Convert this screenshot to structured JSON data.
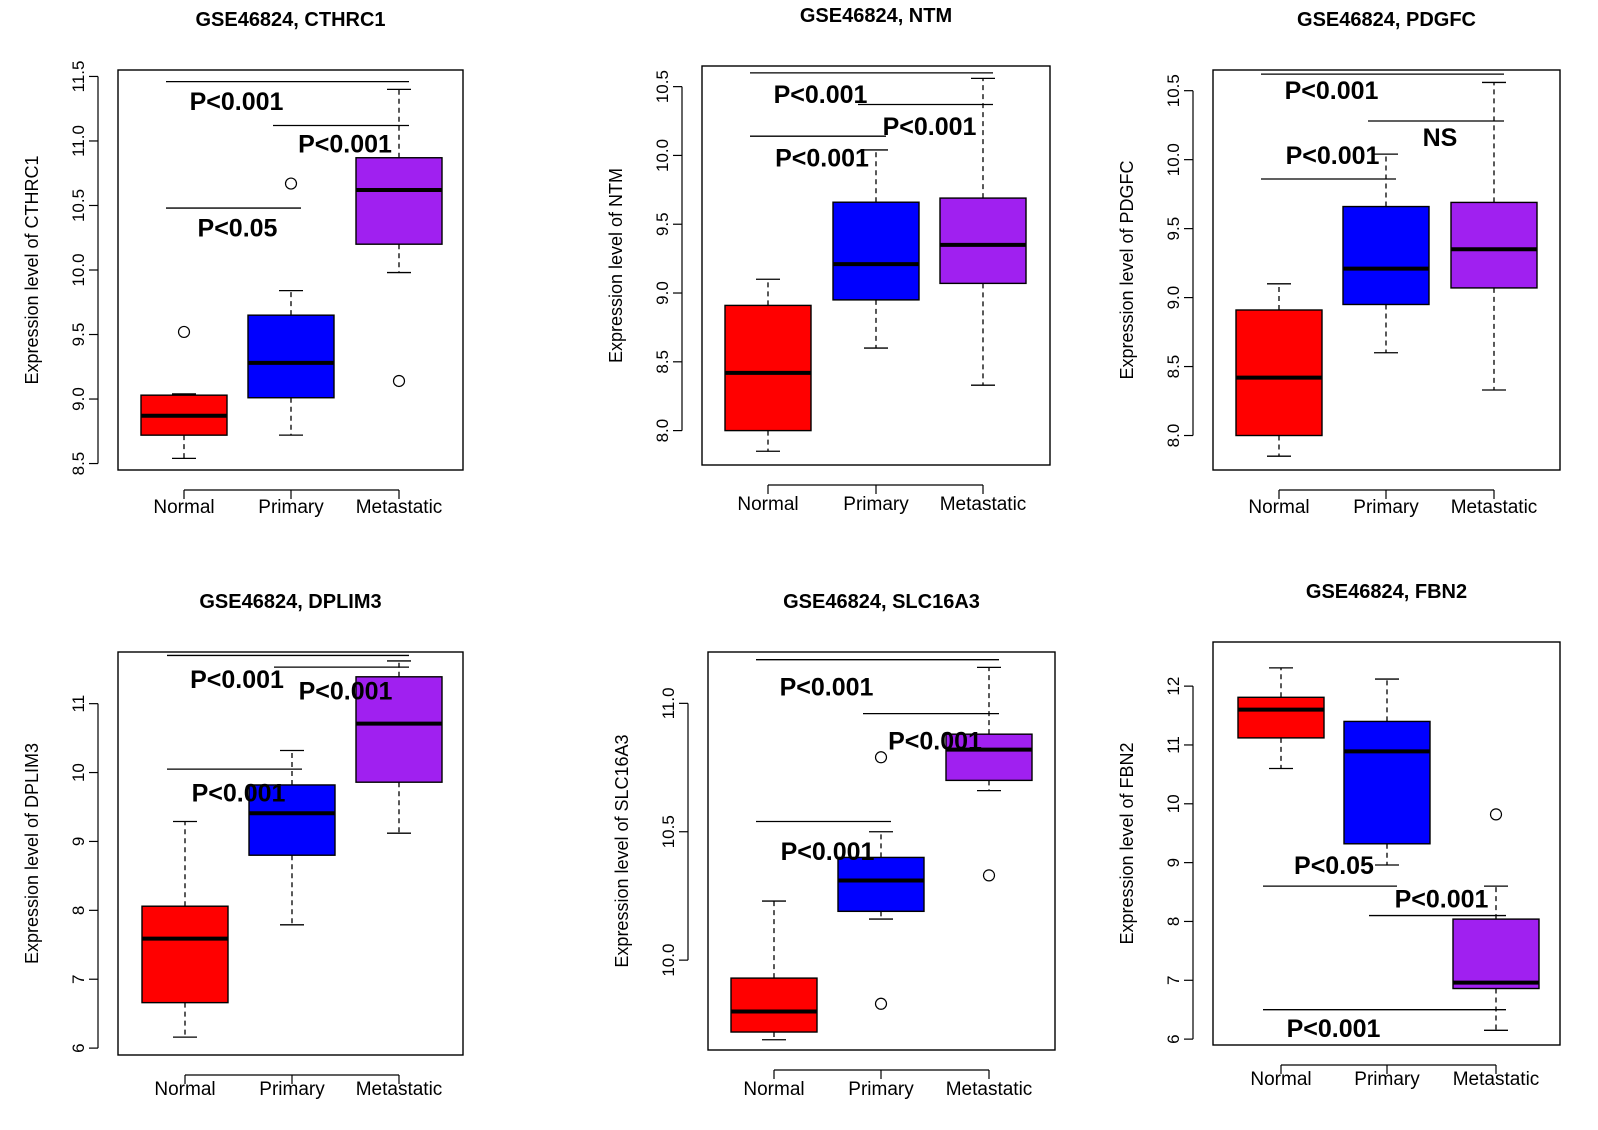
{
  "figure": {
    "colors": {
      "Normal": "#ff0000",
      "Primary": "#0000ff",
      "Metastatic": "#a020f0"
    }
  },
  "chart_data": [
    {
      "id": "cthrc1",
      "type": "boxplot",
      "title": "GSE46824, CTHRC1",
      "ylabel": "Expression level of CTHRC1",
      "categories": [
        "Normal",
        "Primary",
        "Metastatic"
      ],
      "ylim": [
        8.45,
        11.55
      ],
      "yticks": [
        8.5,
        9.0,
        9.5,
        10.0,
        10.5,
        11.0,
        11.5
      ],
      "tick_decimals": 1,
      "boxes": [
        {
          "category": "Normal",
          "min": 8.54,
          "q1": 8.72,
          "median": 8.87,
          "q3": 9.03,
          "max": 9.04,
          "outliers": [
            9.52
          ]
        },
        {
          "category": "Primary",
          "min": 8.72,
          "q1": 9.01,
          "median": 9.28,
          "q3": 9.65,
          "max": 9.84,
          "outliers": [
            10.67
          ]
        },
        {
          "category": "Metastatic",
          "min": 9.98,
          "q1": 10.2,
          "median": 10.62,
          "q3": 10.87,
          "max": 11.4,
          "outliers": [
            9.14
          ]
        }
      ],
      "annotations": [
        {
          "text": "P<0.05",
          "from": "Normal",
          "to": "Primary",
          "line_y": 10.48,
          "text_y": 10.26
        },
        {
          "text": "P<0.001",
          "from": "Primary",
          "to": "Metastatic",
          "line_y": 11.12,
          "text_y": 10.91
        },
        {
          "text": "P<0.001",
          "from": "Normal",
          "to": "Metastatic",
          "line_y": 11.46,
          "text_y": 11.24
        }
      ]
    },
    {
      "id": "ntm",
      "type": "boxplot",
      "title": "GSE46824, NTM",
      "ylabel": "Expression level of NTM",
      "categories": [
        "Normal",
        "Primary",
        "Metastatic"
      ],
      "ylim": [
        7.75,
        10.65
      ],
      "yticks": [
        8.0,
        8.5,
        9.0,
        9.5,
        10.0,
        10.5
      ],
      "tick_decimals": 1,
      "boxes": [
        {
          "category": "Normal",
          "min": 7.85,
          "q1": 8.0,
          "median": 8.42,
          "q3": 8.91,
          "max": 9.1,
          "outliers": []
        },
        {
          "category": "Primary",
          "min": 8.6,
          "q1": 8.95,
          "median": 9.21,
          "q3": 9.66,
          "max": 10.04,
          "outliers": []
        },
        {
          "category": "Metastatic",
          "min": 8.33,
          "q1": 9.07,
          "median": 9.35,
          "q3": 9.69,
          "max": 10.56,
          "outliers": []
        }
      ],
      "annotations": [
        {
          "text": "P<0.001",
          "from": "Normal",
          "to": "Primary",
          "line_y": 10.14,
          "text_y": 9.92
        },
        {
          "text": "P<0.001",
          "from": "Primary",
          "to": "Metastatic",
          "line_y": 10.37,
          "text_y": 10.15
        },
        {
          "text": "P<0.001",
          "from": "Normal",
          "to": "Metastatic",
          "line_y": 10.6,
          "text_y": 10.38
        }
      ]
    },
    {
      "id": "pdgfc",
      "type": "boxplot",
      "title": "GSE46824, PDGFC",
      "ylabel": "Expression level of PDGFC",
      "categories": [
        "Normal",
        "Primary",
        "Metastatic"
      ],
      "ylim": [
        7.75,
        10.65
      ],
      "yticks": [
        8.0,
        8.5,
        9.0,
        9.5,
        10.0,
        10.5
      ],
      "tick_decimals": 1,
      "boxes": [
        {
          "category": "Normal",
          "min": 7.85,
          "q1": 8.0,
          "median": 8.42,
          "q3": 8.91,
          "max": 9.1,
          "outliers": []
        },
        {
          "category": "Primary",
          "min": 8.6,
          "q1": 8.95,
          "median": 9.21,
          "q3": 9.66,
          "max": 10.04,
          "outliers": []
        },
        {
          "category": "Metastatic",
          "min": 8.33,
          "q1": 9.07,
          "median": 9.35,
          "q3": 9.69,
          "max": 10.56,
          "outliers": []
        }
      ],
      "annotations": [
        {
          "text": "P<0.001",
          "from": "Normal",
          "to": "Primary",
          "line_y": 9.86,
          "text_y": 9.97
        },
        {
          "text": "NS",
          "from": "Primary",
          "to": "Metastatic",
          "line_y": 10.28,
          "text_y": 10.1
        },
        {
          "text": "P<0.001",
          "from": "Normal",
          "to": "Metastatic",
          "line_y": 10.62,
          "text_y": 10.44
        }
      ]
    },
    {
      "id": "dplim3",
      "type": "boxplot",
      "title": "GSE46824, DPLIM3",
      "ylabel": "Expression level of DPLIM3",
      "categories": [
        "Normal",
        "Primary",
        "Metastatic"
      ],
      "ylim": [
        5.9,
        11.75
      ],
      "yticks": [
        6,
        7,
        8,
        9,
        10,
        11
      ],
      "tick_decimals": 0,
      "boxes": [
        {
          "category": "Normal",
          "min": 6.16,
          "q1": 6.66,
          "median": 7.59,
          "q3": 8.06,
          "max": 9.29,
          "outliers": []
        },
        {
          "category": "Primary",
          "min": 7.79,
          "q1": 8.8,
          "median": 9.41,
          "q3": 9.82,
          "max": 10.32,
          "outliers": []
        },
        {
          "category": "Metastatic",
          "min": 9.12,
          "q1": 9.86,
          "median": 10.71,
          "q3": 11.39,
          "max": 11.62,
          "outliers": []
        }
      ],
      "annotations": [
        {
          "text": "P<0.001",
          "from": "Normal",
          "to": "Primary",
          "line_y": 10.05,
          "text_y": 9.58
        },
        {
          "text": "P<0.001",
          "from": "Primary",
          "to": "Metastatic",
          "line_y": 11.53,
          "text_y": 11.06
        },
        {
          "text": "P<0.001",
          "from": "Normal",
          "to": "Metastatic",
          "line_y": 11.7,
          "text_y": 11.23
        }
      ]
    },
    {
      "id": "slc16a3",
      "type": "boxplot",
      "title": "GSE46824, SLC16A3",
      "ylabel": "Expression level of SLC16A3",
      "categories": [
        "Normal",
        "Primary",
        "Metastatic"
      ],
      "ylim": [
        9.65,
        11.2
      ],
      "yticks": [
        10.0,
        10.5,
        11.0
      ],
      "tick_decimals": 1,
      "boxes": [
        {
          "category": "Normal",
          "min": 9.69,
          "q1": 9.72,
          "median": 9.8,
          "q3": 9.93,
          "max": 10.23,
          "outliers": []
        },
        {
          "category": "Primary",
          "min": 10.16,
          "q1": 10.19,
          "median": 10.31,
          "q3": 10.4,
          "max": 10.5,
          "outliers": [
            10.79,
            9.83
          ]
        },
        {
          "category": "Metastatic",
          "min": 10.66,
          "q1": 10.7,
          "median": 10.82,
          "q3": 10.88,
          "max": 11.14,
          "outliers": [
            10.33
          ]
        }
      ],
      "annotations": [
        {
          "text": "P<0.001",
          "from": "Normal",
          "to": "Primary",
          "line_y": 10.54,
          "text_y": 10.39
        },
        {
          "text": "P<0.001",
          "from": "Primary",
          "to": "Metastatic",
          "line_y": 10.96,
          "text_y": 10.82
        },
        {
          "text": "P<0.001",
          "from": "Normal",
          "to": "Metastatic",
          "line_y": 11.17,
          "text_y": 11.03
        }
      ]
    },
    {
      "id": "fbn2",
      "type": "boxplot",
      "title": "GSE46824, FBN2",
      "ylabel": "Expression level of FBN2",
      "categories": [
        "Normal",
        "Primary",
        "Metastatic"
      ],
      "ylim": [
        5.9,
        12.75
      ],
      "yticks": [
        6,
        7,
        8,
        9,
        10,
        11,
        12
      ],
      "tick_decimals": 0,
      "boxes": [
        {
          "category": "Normal",
          "min": 10.6,
          "q1": 11.12,
          "median": 11.6,
          "q3": 11.81,
          "max": 12.31,
          "outliers": []
        },
        {
          "category": "Primary",
          "min": 8.96,
          "q1": 9.32,
          "median": 10.89,
          "q3": 11.4,
          "max": 12.12,
          "outliers": []
        },
        {
          "category": "Metastatic",
          "min": 6.15,
          "q1": 6.86,
          "median": 6.96,
          "q3": 8.04,
          "max": 8.6,
          "outliers": [
            9.82
          ]
        }
      ],
      "annotations": [
        {
          "text": "P<0.05",
          "from": "Normal",
          "to": "Primary",
          "line_y": 8.6,
          "text_y": 8.81
        },
        {
          "text": "P<0.001",
          "from": "Primary",
          "to": "Metastatic",
          "line_y": 8.1,
          "text_y": 8.24
        },
        {
          "text": "P<0.001",
          "from": "Normal",
          "to": "Metastatic",
          "line_y": 6.5,
          "text_y": 6.04
        }
      ]
    }
  ]
}
